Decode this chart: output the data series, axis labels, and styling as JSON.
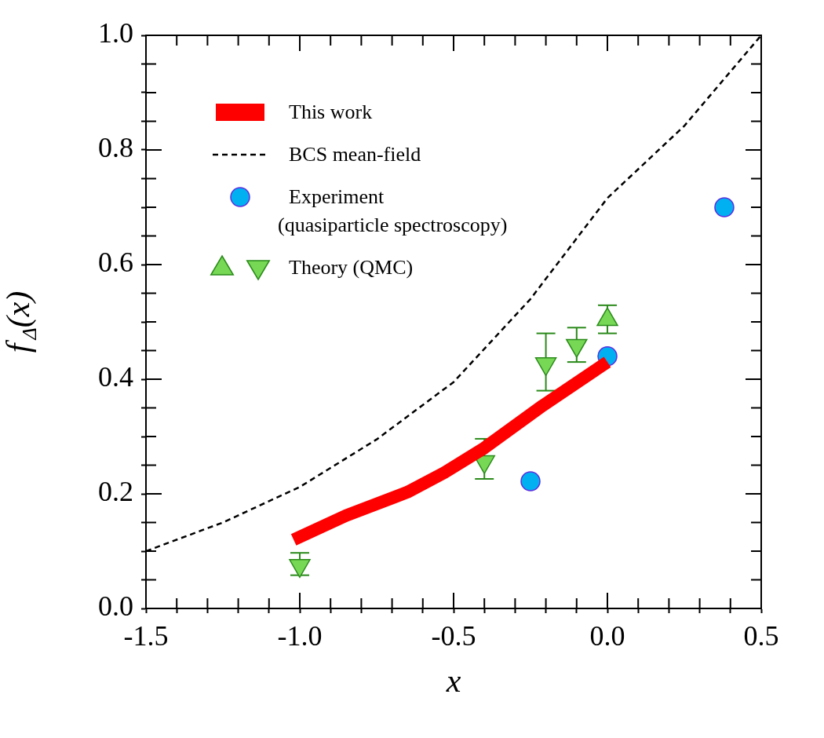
{
  "chart_data": {
    "type": "scatter",
    "xlabel": "x",
    "ylabel": "f$_{Δ}$(x)",
    "legend": "top left",
    "grid": false,
    "xlim": [
      -1.5,
      0.5
    ],
    "xticks": [
      {
        "value": -1.5,
        "label": "-1.5"
      },
      {
        "value": -1.4,
        "label": null
      },
      {
        "value": -1.3,
        "label": null
      },
      {
        "value": -1.2,
        "label": null
      },
      {
        "value": -1.1,
        "label": null
      },
      {
        "value": -1.0,
        "label": "-1.0"
      },
      {
        "value": -0.9,
        "label": null
      },
      {
        "value": -0.8,
        "label": null
      },
      {
        "value": -0.7,
        "label": null
      },
      {
        "value": -0.6,
        "label": null
      },
      {
        "value": -0.5,
        "label": "-0.5"
      },
      {
        "value": -0.4,
        "label": null
      },
      {
        "value": -0.3,
        "label": null
      },
      {
        "value": -0.2,
        "label": null
      },
      {
        "value": -0.1,
        "label": null
      },
      {
        "value": 0,
        "label": "0.0"
      },
      {
        "value": 0.1,
        "label": null
      },
      {
        "value": 0.2,
        "label": null
      },
      {
        "value": 0.3,
        "label": null
      },
      {
        "value": 0.4,
        "label": null
      },
      {
        "value": 0.5,
        "label": "0.5"
      }
    ],
    "ylim": [
      0,
      1
    ],
    "yticks": [
      {
        "value": 0,
        "label": "0.0"
      },
      {
        "value": 0.05,
        "label": null
      },
      {
        "value": 0.1,
        "label": null
      },
      {
        "value": 0.15,
        "label": null
      },
      {
        "value": 0.2,
        "label": "0.2"
      },
      {
        "value": 0.25,
        "label": null
      },
      {
        "value": 0.3,
        "label": null
      },
      {
        "value": 0.35,
        "label": null
      },
      {
        "value": 0.4,
        "label": "0.4"
      },
      {
        "value": 0.45,
        "label": null
      },
      {
        "value": 0.5,
        "label": null
      },
      {
        "value": 0.55,
        "label": null
      },
      {
        "value": 0.6,
        "label": "0.6"
      },
      {
        "value": 0.65,
        "label": null
      },
      {
        "value": 0.7,
        "label": null
      },
      {
        "value": 0.75,
        "label": null
      },
      {
        "value": 0.8,
        "label": "0.8"
      },
      {
        "value": 0.85,
        "label": null
      },
      {
        "value": 0.9,
        "label": null
      },
      {
        "value": 0.95,
        "label": null
      },
      {
        "value": 1.0,
        "label": "1.0"
      }
    ],
    "series": [
      {
        "name": "This work",
        "type": "line",
        "color": "#ff0000",
        "marker": "none",
        "line_style": "solid",
        "x": [
          -1.02,
          -0.85,
          -0.65,
          -0.53,
          -0.4,
          -0.21,
          0
        ],
        "values": [
          0.12,
          0.162,
          0.203,
          0.237,
          0.28,
          0.354,
          0.43
        ]
      },
      {
        "name": "BCS mean-field",
        "type": "line",
        "color": "#000000",
        "marker": "none",
        "line_style": "dashed",
        "x": [
          -1.5,
          -1.25,
          -1.0,
          -0.75,
          -0.5,
          -0.25,
          0,
          0.25,
          0.5
        ],
        "values": [
          0.1,
          0.15,
          0.212,
          0.295,
          0.395,
          0.54,
          0.716,
          0.842,
          1.0
        ]
      },
      {
        "name": "Experiment\n(quasiparticle spectroscopy)",
        "color": "#00b0f0",
        "marker": "circle",
        "x": [
          -0.25,
          0,
          0.38
        ],
        "values": [
          0.222,
          0.44,
          0.7
        ]
      },
      {
        "color": "#77d855",
        "marker": "triangle",
        "x": [
          0
        ],
        "values": [
          0.504
        ],
        "errors": [
          [
            0.48,
            0.529
          ]
        ]
      },
      {
        "name": "Theory (QMC)",
        "color": "#77d855",
        "marker": "triangle-down",
        "x": [
          -1.0,
          -0.4,
          -0.2,
          -0.1
        ],
        "values": [
          0.075,
          0.256,
          0.427,
          0.459
        ],
        "errors": [
          [
            0.058,
            0.097
          ],
          [
            0.226,
            0.296
          ],
          [
            0.38,
            0.48
          ],
          [
            0.43,
            0.49
          ]
        ]
      }
    ]
  }
}
